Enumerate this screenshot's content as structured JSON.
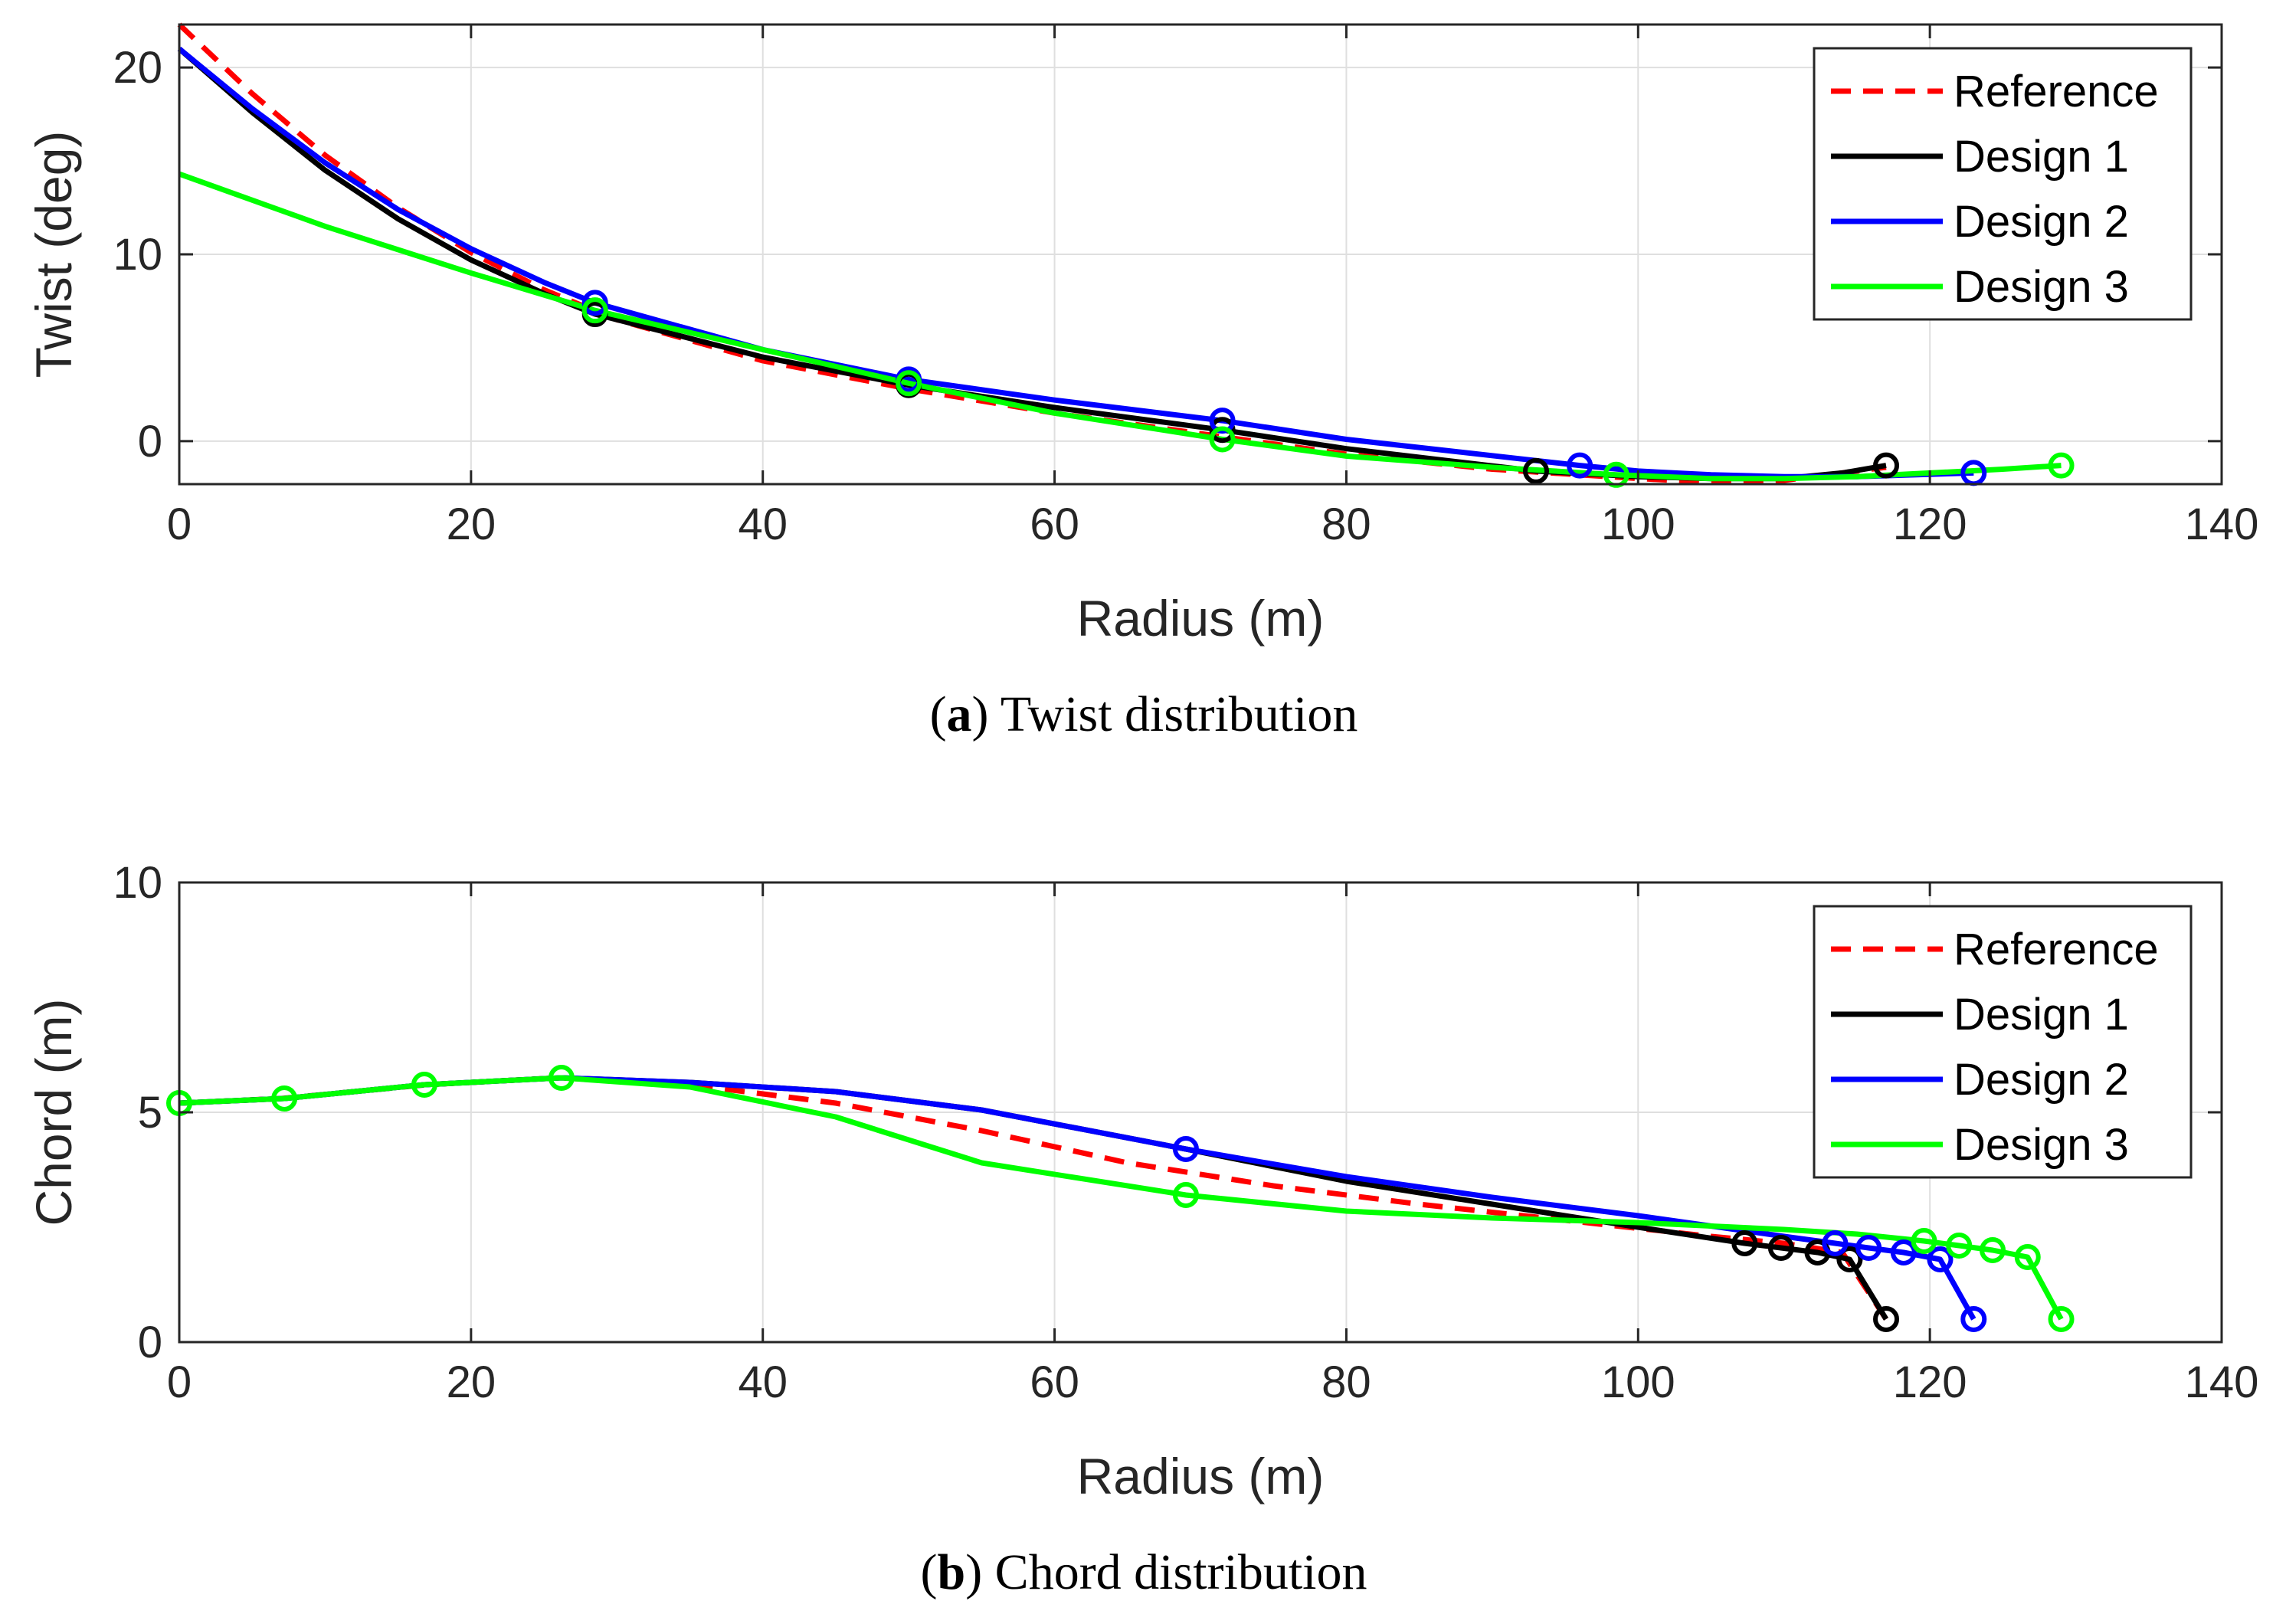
{
  "chart_data": [
    {
      "type": "line",
      "id": "twist",
      "caption_letter": "a",
      "caption_text": ") Twist distribution",
      "caption_open": "(",
      "xlabel": "Radius (m)",
      "ylabel": "Twist (deg)",
      "xlim": [
        0,
        140
      ],
      "ylim": [
        -2.3,
        22.3
      ],
      "xticks": [
        0,
        20,
        40,
        60,
        80,
        100,
        120,
        140
      ],
      "yticks": [
        0,
        10,
        20
      ],
      "grid": true,
      "legend_position": "top-right",
      "series": [
        {
          "name": "Reference",
          "color": "#ff0000",
          "style": "dashed",
          "x": [
            0,
            5,
            10,
            15,
            20,
            25,
            30,
            40,
            50,
            60,
            70,
            80,
            90,
            100,
            105,
            110,
            117
          ],
          "y": [
            22.3,
            18.6,
            15.3,
            12.5,
            10.1,
            8.1,
            6.5,
            4.3,
            2.8,
            1.5,
            0.4,
            -0.7,
            -1.5,
            -2.0,
            -2.2,
            -2.1,
            -1.4
          ],
          "markers_x": [],
          "markers_y": []
        },
        {
          "name": "Design 1",
          "color": "#000000",
          "style": "solid",
          "x": [
            0,
            5,
            10,
            15,
            20,
            25,
            28.5,
            40,
            50,
            60,
            71.5,
            80,
            93,
            100,
            105,
            110,
            114,
            117
          ],
          "y": [
            21.0,
            17.6,
            14.5,
            11.9,
            9.7,
            7.9,
            6.8,
            4.5,
            3.0,
            1.8,
            0.6,
            -0.4,
            -1.6,
            -1.9,
            -2.0,
            -2.0,
            -1.7,
            -1.3
          ],
          "markers_x": [
            28.5,
            50,
            71.5,
            93,
            117
          ],
          "markers_y": [
            6.8,
            3.0,
            0.6,
            -1.6,
            -1.3
          ]
        },
        {
          "name": "Design 2",
          "color": "#0000ff",
          "style": "solid",
          "x": [
            0,
            5,
            10,
            15,
            20,
            25,
            28.5,
            40,
            50,
            60,
            71.5,
            80,
            96,
            100,
            105,
            110,
            115,
            123
          ],
          "y": [
            21.0,
            17.8,
            14.9,
            12.4,
            10.3,
            8.5,
            7.4,
            4.9,
            3.3,
            2.2,
            1.1,
            0.1,
            -1.3,
            -1.6,
            -1.8,
            -1.9,
            -1.9,
            -1.7
          ],
          "markers_x": [
            28.5,
            50,
            71.5,
            96,
            123
          ],
          "markers_y": [
            7.4,
            3.3,
            1.1,
            -1.3,
            -1.7
          ]
        },
        {
          "name": "Design 3",
          "color": "#00ff00",
          "style": "solid",
          "x": [
            0,
            10,
            20,
            28.5,
            40,
            50,
            60,
            71.5,
            80,
            90,
            98.5,
            105,
            110,
            115,
            120,
            125,
            129
          ],
          "y": [
            14.3,
            11.5,
            9.0,
            7.0,
            4.9,
            3.1,
            1.5,
            0.1,
            -0.8,
            -1.4,
            -1.8,
            -2.0,
            -2.0,
            -1.9,
            -1.7,
            -1.5,
            -1.3
          ],
          "markers_x": [
            28.5,
            50,
            71.5,
            98.5,
            129
          ],
          "markers_y": [
            7.0,
            3.1,
            0.1,
            -1.8,
            -1.3
          ]
        }
      ]
    },
    {
      "type": "line",
      "id": "chord",
      "caption_letter": "b",
      "caption_text": ") Chord distribution",
      "caption_open": "(",
      "xlabel": "Radius (m)",
      "ylabel": "Chord (m)",
      "xlim": [
        0,
        140
      ],
      "ylim": [
        0,
        10
      ],
      "xticks": [
        0,
        20,
        40,
        60,
        80,
        100,
        120,
        140
      ],
      "yticks": [
        0,
        5,
        10
      ],
      "grid": true,
      "legend_position": "top-right",
      "series": [
        {
          "name": "Reference",
          "color": "#ff0000",
          "style": "dashed",
          "x": [
            0,
            7,
            17,
            26,
            35,
            45,
            55,
            65,
            75,
            85,
            95,
            105,
            110,
            114,
            117
          ],
          "y": [
            5.2,
            5.3,
            5.6,
            5.75,
            5.6,
            5.2,
            4.6,
            3.9,
            3.4,
            3.0,
            2.65,
            2.3,
            2.15,
            1.95,
            0.5
          ],
          "markers_x": [],
          "markers_y": []
        },
        {
          "name": "Design 1",
          "color": "#000000",
          "style": "solid",
          "x": [
            0,
            7.2,
            16.8,
            26.2,
            35,
            45,
            55,
            69,
            80,
            90,
            100,
            107.3,
            109.8,
            112.3,
            114.5,
            117
          ],
          "y": [
            5.2,
            5.3,
            5.6,
            5.75,
            5.65,
            5.45,
            5.05,
            4.2,
            3.5,
            3.0,
            2.5,
            2.15,
            2.05,
            1.95,
            1.8,
            0.5
          ],
          "markers_x": [
            107.3,
            109.8,
            112.3,
            114.5,
            117
          ],
          "markers_y": [
            2.15,
            2.05,
            1.95,
            1.8,
            0.5
          ]
        },
        {
          "name": "Design 2",
          "color": "#0000ff",
          "style": "solid",
          "x": [
            0,
            7.2,
            16.8,
            26.2,
            35,
            45,
            55,
            69,
            80,
            90,
            100,
            110,
            113.5,
            115.8,
            118.2,
            120.7,
            123
          ],
          "y": [
            5.2,
            5.3,
            5.6,
            5.75,
            5.65,
            5.45,
            5.05,
            4.2,
            3.6,
            3.15,
            2.75,
            2.3,
            2.15,
            2.05,
            1.95,
            1.8,
            0.5
          ],
          "markers_x": [
            69,
            113.5,
            115.8,
            118.2,
            120.7,
            123
          ],
          "markers_y": [
            4.2,
            2.15,
            2.05,
            1.95,
            1.8,
            0.5
          ]
        },
        {
          "name": "Design 3",
          "color": "#00ff00",
          "style": "solid",
          "x": [
            0,
            7.2,
            16.8,
            26.2,
            35,
            45,
            55,
            69,
            80,
            90,
            100,
            110,
            115,
            119.6,
            122,
            124.3,
            126.7,
            129
          ],
          "y": [
            5.2,
            5.3,
            5.6,
            5.75,
            5.55,
            4.9,
            3.9,
            3.2,
            2.85,
            2.7,
            2.6,
            2.45,
            2.35,
            2.2,
            2.1,
            2.0,
            1.85,
            0.5
          ],
          "markers_x": [
            0,
            7.2,
            16.8,
            26.2,
            69,
            119.6,
            122,
            124.3,
            126.7,
            129
          ],
          "markers_y": [
            5.2,
            5.3,
            5.6,
            5.75,
            3.2,
            2.2,
            2.1,
            2.0,
            1.85,
            0.5
          ]
        }
      ]
    }
  ]
}
